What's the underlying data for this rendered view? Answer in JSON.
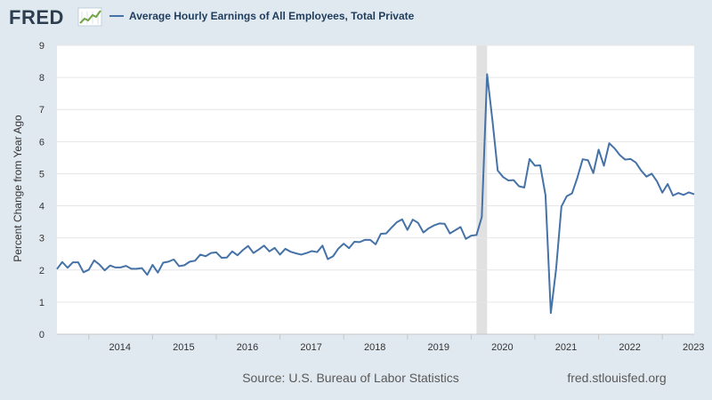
{
  "logo": {
    "text": "FRED"
  },
  "colors": {
    "background": "#e1e9f0",
    "plot_background": "#ffffff",
    "series": "#4572a7",
    "grid": "#e6e6e6",
    "recession": "#e1e1e1"
  },
  "chart_data": {
    "type": "line",
    "title": "",
    "ylabel": "Percent Change from Year Ago",
    "xlabel": "",
    "ylim": [
      0,
      9
    ],
    "yticks": [
      "0",
      "1",
      "2",
      "3",
      "4",
      "5",
      "6",
      "7",
      "8",
      "9"
    ],
    "xlim": [
      "2013-07",
      "2023-07"
    ],
    "xticks": [
      "2014",
      "2015",
      "2016",
      "2017",
      "2018",
      "2019",
      "2020",
      "2021",
      "2022",
      "2023"
    ],
    "grid": true,
    "legend_position": "top-left",
    "recessions": [
      {
        "start": "2020-02",
        "end": "2020-04"
      }
    ],
    "series": [
      {
        "name": "Average Hourly Earnings of All Employees, Total Private",
        "color": "#4572a7",
        "start": "2013-07",
        "values": [
          2.03,
          2.25,
          2.07,
          2.24,
          2.24,
          1.93,
          2.01,
          2.3,
          2.17,
          1.99,
          2.14,
          2.08,
          2.08,
          2.13,
          2.04,
          2.04,
          2.06,
          1.85,
          2.16,
          1.92,
          2.23,
          2.26,
          2.33,
          2.12,
          2.15,
          2.26,
          2.29,
          2.48,
          2.43,
          2.53,
          2.55,
          2.38,
          2.39,
          2.58,
          2.46,
          2.62,
          2.75,
          2.53,
          2.64,
          2.76,
          2.58,
          2.69,
          2.48,
          2.66,
          2.57,
          2.52,
          2.48,
          2.53,
          2.59,
          2.56,
          2.76,
          2.34,
          2.43,
          2.67,
          2.82,
          2.68,
          2.88,
          2.87,
          2.94,
          2.94,
          2.8,
          3.13,
          3.14,
          3.32,
          3.49,
          3.58,
          3.25,
          3.57,
          3.47,
          3.17,
          3.3,
          3.39,
          3.45,
          3.44,
          3.14,
          3.24,
          3.34,
          2.97,
          3.07,
          3.09,
          3.65,
          8.1,
          6.67,
          5.1,
          4.9,
          4.79,
          4.8,
          4.61,
          4.57,
          5.46,
          5.25,
          5.26,
          4.33,
          0.66,
          2.04,
          3.98,
          4.3,
          4.39,
          4.88,
          5.45,
          5.42,
          5.02,
          5.75,
          5.25,
          5.95,
          5.79,
          5.58,
          5.44,
          5.46,
          5.35,
          5.1,
          4.91,
          5.0,
          4.76,
          4.41,
          4.68,
          4.32,
          4.4,
          4.34,
          4.42,
          4.36
        ]
      }
    ]
  },
  "footer": {
    "source": "Source: U.S. Bureau of Labor Statistics",
    "site": "fred.stlouisfed.org"
  }
}
